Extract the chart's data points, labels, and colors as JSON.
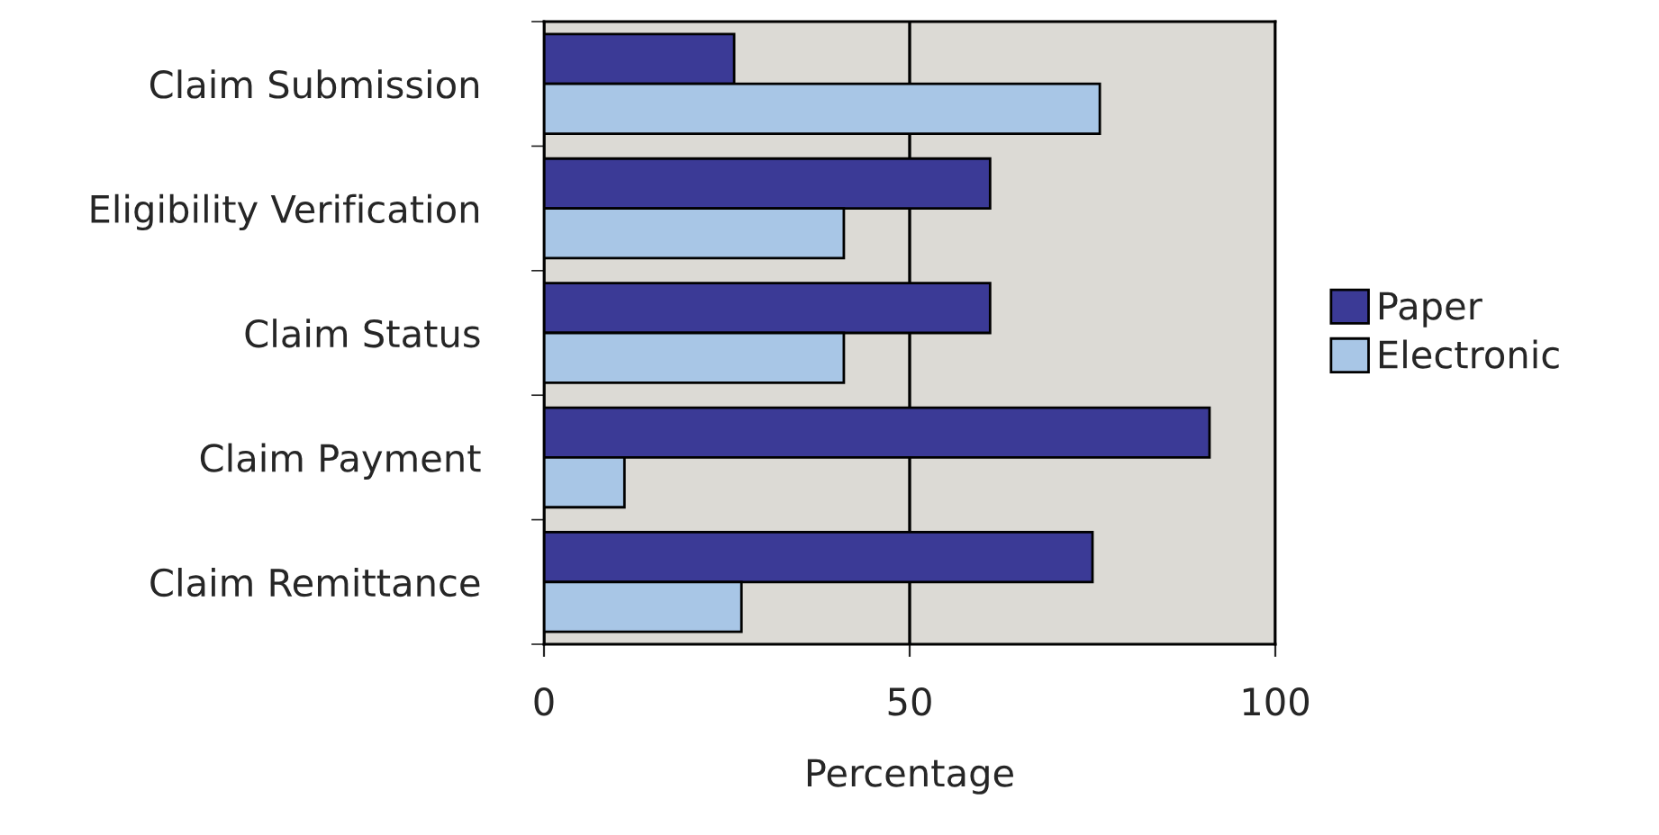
{
  "chart_data": {
    "type": "bar",
    "orientation": "horizontal",
    "xlabel": "Percentage",
    "categories": [
      "Claim Submission",
      "Eligibility Verification",
      "Claim Status",
      "Claim Payment",
      "Claim Remittance"
    ],
    "series": [
      {
        "name": "Paper",
        "color": "#3b3a96",
        "values": [
          26,
          61,
          61,
          91,
          75
        ]
      },
      {
        "name": "Electronic",
        "color": "#a8c6e6",
        "values": [
          76,
          41,
          41,
          11,
          27
        ]
      }
    ],
    "xlim": [
      0,
      100
    ],
    "xticks": [
      0,
      50,
      100
    ],
    "grid": "x",
    "legend": "right"
  }
}
